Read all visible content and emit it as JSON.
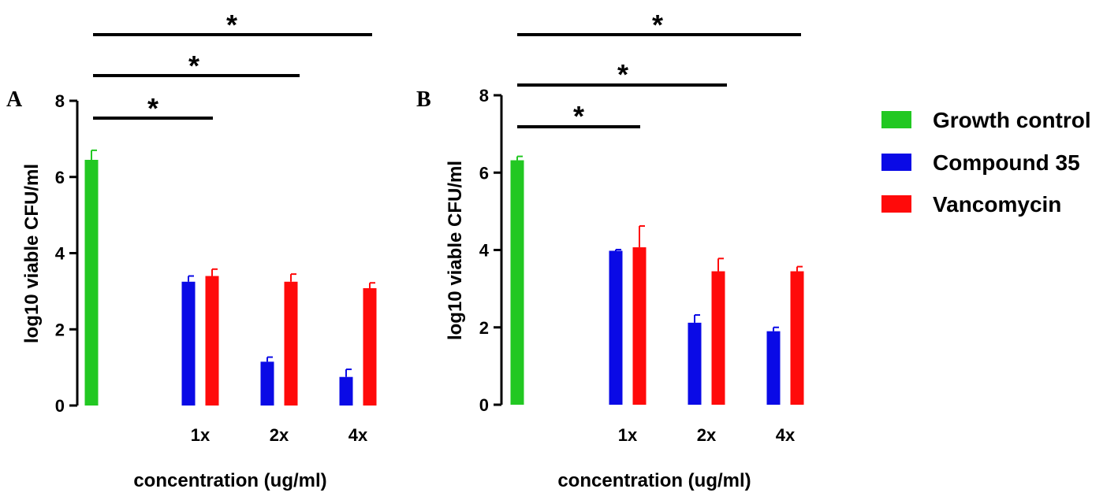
{
  "chart_data": [
    {
      "type": "bar",
      "panel_label": "A",
      "categories": [
        "",
        "1x",
        "2x",
        "4x"
      ],
      "xlabel": "concentration (ug/ml)",
      "ylabel": "log10 viable CFU/ml",
      "ylim": [
        0,
        8
      ],
      "yticks": [
        0,
        2,
        4,
        6,
        8
      ],
      "grid": false,
      "legend": "right",
      "series": [
        {
          "name": "Growth control",
          "color": "#22c822",
          "values": [
            6.45,
            null,
            null,
            null
          ],
          "errors": [
            0.25,
            null,
            null,
            null
          ]
        },
        {
          "name": "Compound 35",
          "color": "#0a0ae6",
          "values": [
            null,
            3.25,
            1.15,
            0.75
          ],
          "errors": [
            null,
            0.15,
            0.12,
            0.2
          ]
        },
        {
          "name": "Vancomycin",
          "color": "#ff0a0a",
          "values": [
            null,
            3.4,
            3.25,
            3.08
          ],
          "errors": [
            null,
            0.18,
            0.2,
            0.14
          ]
        }
      ],
      "significance": [
        {
          "label": "*",
          "from": "Growth control",
          "to": "1x"
        },
        {
          "label": "*",
          "from": "Growth control",
          "to": "2x"
        },
        {
          "label": "*",
          "from": "Growth control",
          "to": "4x"
        }
      ]
    },
    {
      "type": "bar",
      "panel_label": "B",
      "categories": [
        "",
        "1x",
        "2x",
        "4x"
      ],
      "xlabel": "concentration (ug/ml)",
      "ylabel": "log10 viable CFU/ml",
      "ylim": [
        0,
        8
      ],
      "yticks": [
        0,
        2,
        4,
        6,
        8
      ],
      "grid": false,
      "legend": "right",
      "series": [
        {
          "name": "Growth control",
          "color": "#22c822",
          "values": [
            6.32,
            null,
            null,
            null
          ],
          "errors": [
            0.1,
            null,
            null,
            null
          ]
        },
        {
          "name": "Compound 35",
          "color": "#0a0ae6",
          "values": [
            null,
            3.98,
            2.12,
            1.9
          ],
          "errors": [
            null,
            0.03,
            0.2,
            0.1
          ]
        },
        {
          "name": "Vancomycin",
          "color": "#ff0a0a",
          "values": [
            null,
            4.07,
            3.45,
            3.45
          ],
          "errors": [
            null,
            0.55,
            0.33,
            0.12
          ]
        }
      ],
      "significance": [
        {
          "label": "*",
          "from": "Growth control",
          "to": "1x"
        },
        {
          "label": "*",
          "from": "Growth control",
          "to": "2x"
        },
        {
          "label": "*",
          "from": "Growth control",
          "to": "4x"
        }
      ]
    }
  ],
  "legend": {
    "items": [
      {
        "label": "Growth control",
        "color": "#22c822"
      },
      {
        "label": "Compound 35",
        "color": "#0a0ae6"
      },
      {
        "label": "Vancomycin",
        "color": "#ff0a0a"
      }
    ]
  }
}
